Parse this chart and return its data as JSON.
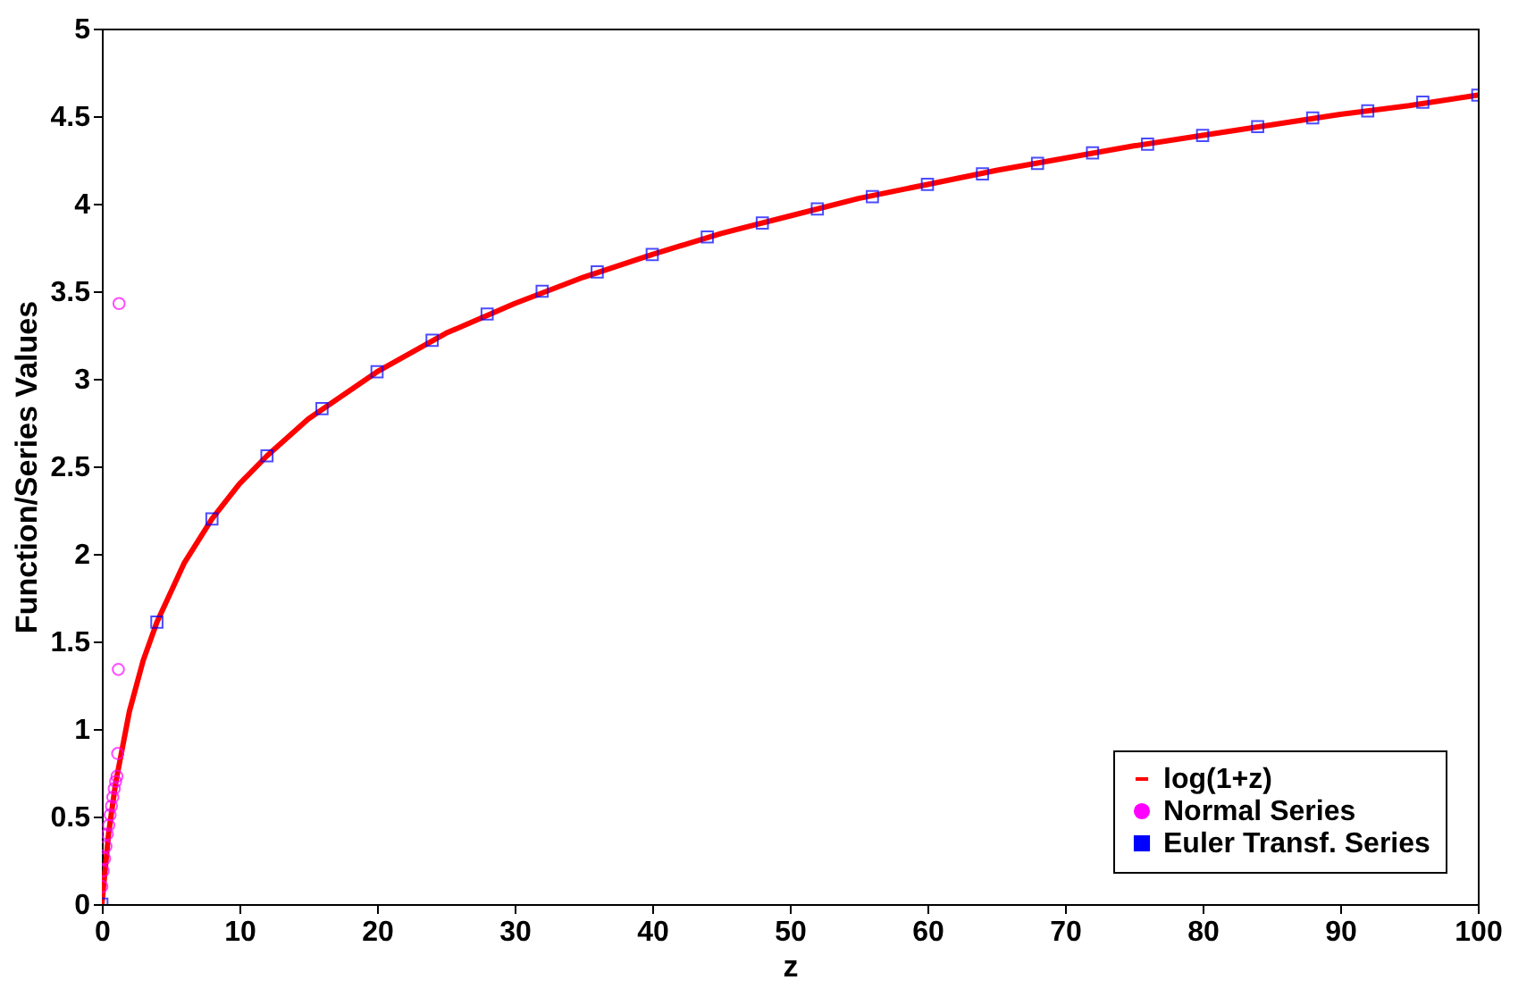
{
  "chart_data": {
    "type": "line",
    "xlabel": "z",
    "ylabel": "Function/Series Values",
    "xlim": [
      0,
      100
    ],
    "ylim": [
      0,
      5
    ],
    "xticks": [
      0,
      10,
      20,
      30,
      40,
      50,
      60,
      70,
      80,
      90,
      100
    ],
    "yticks": [
      0,
      0.5,
      1,
      1.5,
      2,
      2.5,
      3,
      3.5,
      4,
      4.5,
      5
    ],
    "grid": false,
    "legend": "bottom right",
    "series": [
      {
        "name": "log(1+z)",
        "color": "#ff0000",
        "marker": "none",
        "line_style": "solid",
        "x": [
          0,
          0.5,
          1,
          2,
          3,
          4,
          6,
          8,
          10,
          12,
          15,
          20,
          25,
          30,
          35,
          40,
          45,
          50,
          55,
          60,
          65,
          70,
          75,
          80,
          85,
          90,
          95,
          100
        ],
        "values": [
          0,
          0.41,
          0.69,
          1.1,
          1.39,
          1.61,
          1.95,
          2.2,
          2.4,
          2.56,
          2.77,
          3.04,
          3.26,
          3.43,
          3.58,
          3.71,
          3.83,
          3.93,
          4.03,
          4.11,
          4.19,
          4.26,
          4.33,
          4.39,
          4.45,
          4.51,
          4.56,
          4.62
        ]
      },
      {
        "name": "Normal Series",
        "type": "scatter",
        "color": "#ff00ff",
        "marker": "circle",
        "x": [
          0,
          0.1,
          0.2,
          0.3,
          0.4,
          0.5,
          0.6,
          0.7,
          0.8,
          0.9,
          1,
          1.1,
          1.15,
          1.2,
          1.25
        ],
        "values": [
          0.1,
          0.19,
          0.26,
          0.33,
          0.4,
          0.45,
          0.51,
          0.56,
          0.61,
          0.66,
          0.7,
          0.73,
          0.86,
          1.34,
          3.43
        ]
      },
      {
        "name": "Euler Transf. Series",
        "type": "scatter",
        "color": "#0000ff",
        "marker": "square",
        "x": [
          0,
          4,
          8,
          12,
          16,
          20,
          24,
          28,
          32,
          36,
          40,
          44,
          48,
          52,
          56,
          60,
          64,
          68,
          72,
          76,
          80,
          84,
          88,
          92,
          96,
          100
        ],
        "values": [
          0,
          1.61,
          2.2,
          2.56,
          2.83,
          3.04,
          3.22,
          3.37,
          3.5,
          3.61,
          3.71,
          3.81,
          3.89,
          3.97,
          4.04,
          4.11,
          4.17,
          4.23,
          4.29,
          4.34,
          4.39,
          4.44,
          4.49,
          4.53,
          4.58,
          4.62
        ]
      }
    ]
  }
}
